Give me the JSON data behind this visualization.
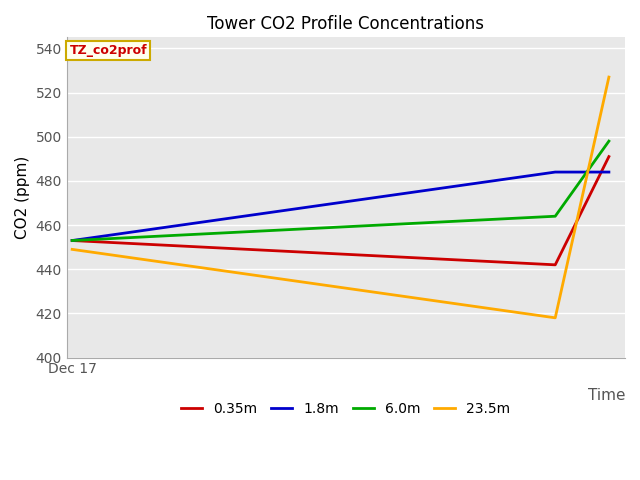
{
  "title": "Tower CO2 Profile Concentrations",
  "xlabel": "Time",
  "ylabel": "CO2 (ppm)",
  "ylim": [
    400,
    545
  ],
  "yticks": [
    400,
    420,
    440,
    460,
    480,
    500,
    520,
    540
  ],
  "x_values": [
    0,
    9,
    10
  ],
  "xlim": [
    -0.1,
    10.3
  ],
  "series": {
    "0.35m": {
      "color": "#cc0000",
      "data": [
        453,
        442,
        491
      ]
    },
    "1.8m": {
      "color": "#0000cc",
      "data": [
        453,
        484,
        484
      ]
    },
    "6.0m": {
      "color": "#00aa00",
      "data": [
        453,
        464,
        498
      ]
    },
    "23.5m": {
      "color": "#ffaa00",
      "data": [
        449,
        418,
        527
      ]
    }
  },
  "legend_labels": [
    "0.35m",
    "1.8m",
    "6.0m",
    "23.5m"
  ],
  "legend_colors": [
    "#cc0000",
    "#0000cc",
    "#00aa00",
    "#ffaa00"
  ],
  "annotation_label": "TZ_co2prof",
  "annotation_color": "#cc0000",
  "annotation_bg": "#ffffee",
  "annotation_border": "#ccaa00",
  "plot_bg": "#e8e8e8",
  "grid_color": "#ffffff",
  "linewidth": 2.0,
  "fig_bg": "#ffffff",
  "title_fontsize": 12,
  "axis_fontsize": 11,
  "legend_fontsize": 10
}
